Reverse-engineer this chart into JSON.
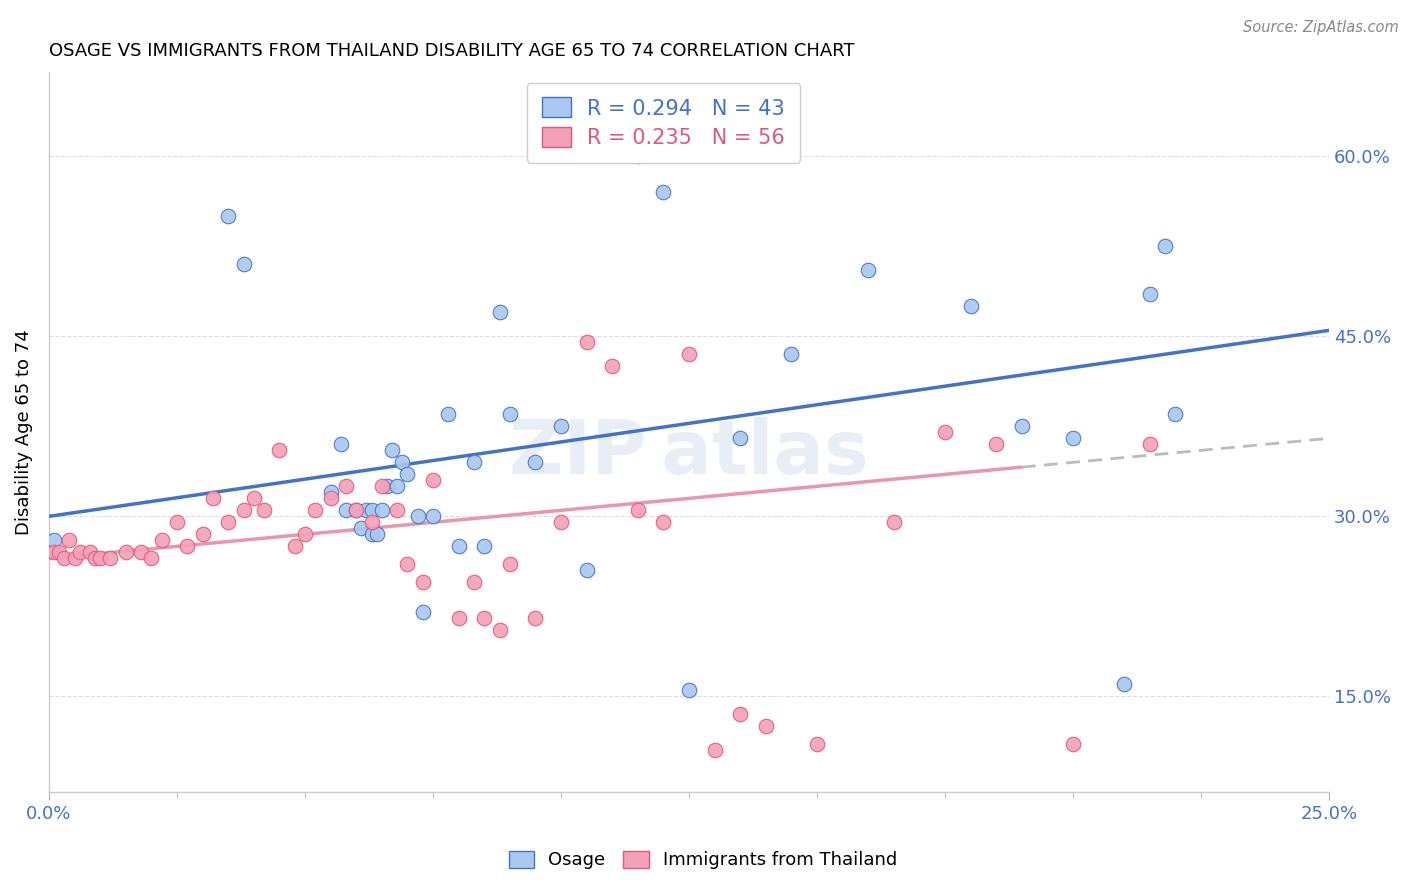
{
  "title": "OSAGE VS IMMIGRANTS FROM THAILAND DISABILITY AGE 65 TO 74 CORRELATION CHART",
  "source": "Source: ZipAtlas.com",
  "ylabel": "Disability Age 65 to 74",
  "yticks": [
    "15.0%",
    "30.0%",
    "45.0%",
    "60.0%"
  ],
  "ytick_vals": [
    0.15,
    0.3,
    0.45,
    0.6
  ],
  "xlim": [
    0.0,
    0.25
  ],
  "ylim": [
    0.07,
    0.67
  ],
  "legend_label1": "Osage",
  "legend_label2": "Immigrants from Thailand",
  "R1": 0.294,
  "N1": 43,
  "R2": 0.235,
  "N2": 56,
  "color_blue": "#A8C8F0",
  "color_pink": "#F4A0B8",
  "color_blue_edge": "#4472C4",
  "color_pink_edge": "#E05878",
  "color_blue_line": "#4472C4",
  "color_pink_line": "#E896B0",
  "color_gray_dash": "#BBBBBB",
  "watermark_color": "#E8EEF5",
  "osage_x": [
    0.001,
    0.035,
    0.038,
    0.055,
    0.057,
    0.058,
    0.06,
    0.061,
    0.062,
    0.063,
    0.063,
    0.064,
    0.065,
    0.066,
    0.067,
    0.068,
    0.069,
    0.07,
    0.072,
    0.073,
    0.075,
    0.078,
    0.08,
    0.083,
    0.085,
    0.088,
    0.09,
    0.095,
    0.1,
    0.105,
    0.115,
    0.12,
    0.125,
    0.135,
    0.145,
    0.16,
    0.18,
    0.19,
    0.2,
    0.21,
    0.215,
    0.218,
    0.22
  ],
  "osage_y": [
    0.28,
    0.55,
    0.51,
    0.32,
    0.36,
    0.305,
    0.305,
    0.29,
    0.305,
    0.285,
    0.305,
    0.285,
    0.305,
    0.325,
    0.355,
    0.325,
    0.345,
    0.335,
    0.3,
    0.22,
    0.3,
    0.385,
    0.275,
    0.345,
    0.275,
    0.47,
    0.385,
    0.345,
    0.375,
    0.255,
    0.6,
    0.57,
    0.155,
    0.365,
    0.435,
    0.505,
    0.475,
    0.375,
    0.365,
    0.16,
    0.485,
    0.525,
    0.385
  ],
  "thai_x": [
    0.001,
    0.002,
    0.003,
    0.004,
    0.005,
    0.006,
    0.008,
    0.009,
    0.01,
    0.012,
    0.015,
    0.018,
    0.02,
    0.022,
    0.025,
    0.027,
    0.03,
    0.032,
    0.035,
    0.038,
    0.04,
    0.042,
    0.045,
    0.048,
    0.05,
    0.052,
    0.055,
    0.058,
    0.06,
    0.063,
    0.065,
    0.068,
    0.07,
    0.073,
    0.075,
    0.08,
    0.083,
    0.085,
    0.088,
    0.09,
    0.095,
    0.1,
    0.105,
    0.11,
    0.115,
    0.12,
    0.125,
    0.13,
    0.135,
    0.14,
    0.15,
    0.165,
    0.175,
    0.185,
    0.2,
    0.215
  ],
  "thai_y": [
    0.27,
    0.27,
    0.265,
    0.28,
    0.265,
    0.27,
    0.27,
    0.265,
    0.265,
    0.265,
    0.27,
    0.27,
    0.265,
    0.28,
    0.295,
    0.275,
    0.285,
    0.315,
    0.295,
    0.305,
    0.315,
    0.305,
    0.355,
    0.275,
    0.285,
    0.305,
    0.315,
    0.325,
    0.305,
    0.295,
    0.325,
    0.305,
    0.26,
    0.245,
    0.33,
    0.215,
    0.245,
    0.215,
    0.205,
    0.26,
    0.215,
    0.295,
    0.445,
    0.425,
    0.305,
    0.295,
    0.435,
    0.105,
    0.135,
    0.125,
    0.11,
    0.295,
    0.37,
    0.36,
    0.11,
    0.36
  ]
}
